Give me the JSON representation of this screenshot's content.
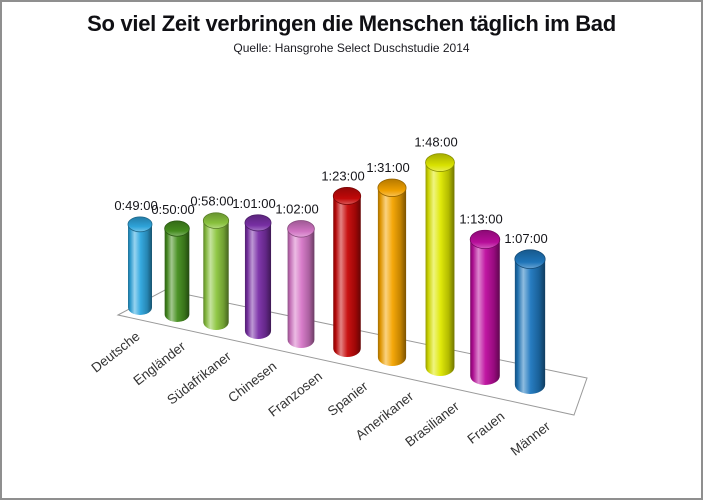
{
  "page": {
    "title": "So viel Zeit verbringen die Menschen täglich im Bad",
    "source_line": "Quelle: Hansgrohe Select Duschstudie 2014"
  },
  "chart_data": {
    "type": "bar",
    "variant": "3d-cylinder",
    "title": "So viel Zeit verbringen die Menschen täglich im Bad",
    "subtitle": "Quelle: Hansgrohe Select Duschstudie 2014",
    "unit": "h:mm:ss",
    "categories": [
      "Deutsche",
      "Engländer",
      "Südafrikaner",
      "Chinesen",
      "Franzosen",
      "Spanier",
      "Amerikaner",
      "Brasilianer",
      "Frauen",
      "Männer"
    ],
    "values": [
      "0:49:00",
      "0:50:00",
      "0:58:00",
      "1:01:00",
      "1:02:00",
      "1:23:00",
      "1:31:00",
      "1:48:00",
      "1:13:00",
      "1:07:00"
    ],
    "values_minutes": [
      49,
      50,
      58,
      61,
      62,
      83,
      91,
      108,
      73,
      67
    ],
    "bar_colors": [
      "#2FA8E0",
      "#46901F",
      "#8CC63F",
      "#7B30A8",
      "#D678C8",
      "#C70909",
      "#F5A400",
      "#DFE800",
      "#BD0D9E",
      "#1F78BE"
    ],
    "value_label_color": "#15151a",
    "category_label_color": "#333333",
    "floor_stroke_color": "#9a9a9a",
    "background": "#ffffff",
    "border_color": "#8f8f8f",
    "axes": {
      "y_axis_visible": false,
      "gridlines": false,
      "x_labels_rotation_deg": -38,
      "legend": "none"
    }
  }
}
